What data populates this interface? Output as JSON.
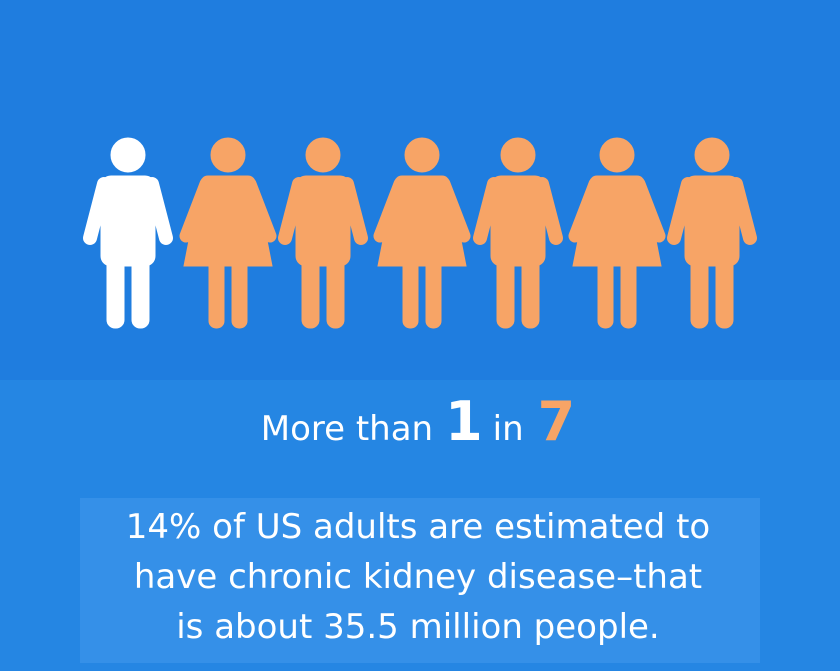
{
  "headline": {
    "prefix": "More than",
    "numerator": "1",
    "middle": "in",
    "denominator": "7"
  },
  "body": {
    "lines": [
      "14% of US adults are estimated to",
      "have chronic kidney disease–that",
      "is about 35.5 million people."
    ]
  }
}
